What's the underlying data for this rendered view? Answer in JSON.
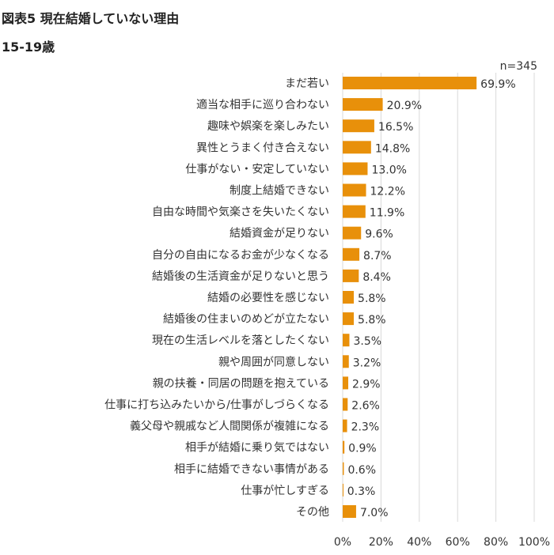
{
  "title": "図表5 現在結婚していない理由",
  "subtitle": "15-19歳",
  "chart_data": {
    "type": "bar",
    "orientation": "horizontal",
    "title": "図表5 現在結婚していない理由",
    "subtitle": "15-19歳",
    "note": "n=345",
    "categories": [
      "まだ若い",
      "適当な相手に巡り合わない",
      "趣味や娯楽を楽しみたい",
      "異性とうまく付き合えない",
      "仕事がない・安定していない",
      "制度上結婚できない",
      "自由な時間や気楽さを失いたくない",
      "結婚資金が足りない",
      "自分の自由になるお金が少なくなる",
      "結婚後の生活資金が足りないと思う",
      "結婚の必要性を感じない",
      "結婚後の住まいのめどが立たない",
      "現在の生活レベルを落としたくない",
      "親や周囲が同意しない",
      "親の扶養・同居の問題を抱えている",
      "仕事に打ち込みたいから/仕事がしづらくなる",
      "義父母や親戚など人間関係が複雑になる",
      "相手が結婚に乗り気ではない",
      "相手に結婚できない事情がある",
      "仕事が忙しすぎる",
      "その他"
    ],
    "values": [
      69.9,
      20.9,
      16.5,
      14.8,
      13.0,
      12.2,
      11.9,
      9.6,
      8.7,
      8.4,
      5.8,
      5.8,
      3.5,
      3.2,
      2.9,
      2.6,
      2.3,
      0.9,
      0.6,
      0.3,
      7.0
    ],
    "xlim": [
      0,
      100
    ],
    "xticks": [
      "0%",
      "20%",
      "40%",
      "60%",
      "80%",
      "100%"
    ],
    "xlabel": "",
    "ylabel": "",
    "grid": true,
    "bar_color": "#E8900A"
  }
}
